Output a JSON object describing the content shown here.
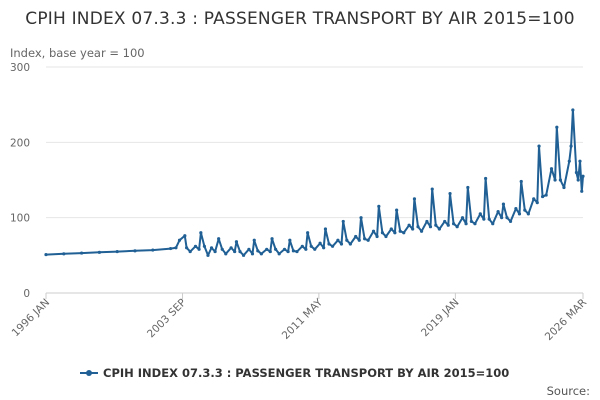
{
  "chart_data": {
    "type": "line",
    "title": "CPIH INDEX 07.3.3 : PASSENGER TRANSPORT BY AIR 2015=100",
    "ylabel": "Index, base year = 100",
    "xlabel": "",
    "ylim": [
      0,
      300
    ],
    "yticks": [
      0,
      100,
      200,
      300
    ],
    "x_range": [
      1996.0,
      2026.17
    ],
    "xtick_labels": [
      {
        "label": "1996 JAN",
        "t": 1996.0
      },
      {
        "label": "2003 SEP",
        "t": 2003.67
      },
      {
        "label": "2011 MAY",
        "t": 2011.33
      },
      {
        "label": "2019 JAN",
        "t": 2019.0
      },
      {
        "label": "2026 MAR",
        "t": 2026.17
      }
    ],
    "series": [
      {
        "name": "CPIH INDEX 07.3.3 : PASSENGER TRANSPORT BY AIR 2015=100",
        "color": "#206095",
        "points": [
          [
            1996.0,
            51
          ],
          [
            1997.0,
            52
          ],
          [
            1998.0,
            53
          ],
          [
            1999.0,
            54
          ],
          [
            2000.0,
            55
          ],
          [
            2001.0,
            56
          ],
          [
            2002.0,
            57
          ],
          [
            2003.0,
            59
          ],
          [
            2003.3,
            60
          ],
          [
            2003.5,
            70
          ],
          [
            2003.8,
            76
          ],
          [
            2003.9,
            60
          ],
          [
            2004.1,
            55
          ],
          [
            2004.4,
            62
          ],
          [
            2004.6,
            58
          ],
          [
            2004.7,
            80
          ],
          [
            2004.9,
            62
          ],
          [
            2005.1,
            50
          ],
          [
            2005.3,
            60
          ],
          [
            2005.5,
            55
          ],
          [
            2005.7,
            72
          ],
          [
            2005.9,
            58
          ],
          [
            2006.1,
            52
          ],
          [
            2006.4,
            60
          ],
          [
            2006.6,
            55
          ],
          [
            2006.7,
            68
          ],
          [
            2006.9,
            55
          ],
          [
            2007.1,
            50
          ],
          [
            2007.4,
            58
          ],
          [
            2007.6,
            52
          ],
          [
            2007.7,
            70
          ],
          [
            2007.9,
            56
          ],
          [
            2008.1,
            52
          ],
          [
            2008.4,
            58
          ],
          [
            2008.6,
            55
          ],
          [
            2008.7,
            72
          ],
          [
            2008.9,
            58
          ],
          [
            2009.1,
            52
          ],
          [
            2009.4,
            58
          ],
          [
            2009.6,
            55
          ],
          [
            2009.7,
            70
          ],
          [
            2009.9,
            56
          ],
          [
            2010.1,
            55
          ],
          [
            2010.4,
            62
          ],
          [
            2010.6,
            58
          ],
          [
            2010.7,
            80
          ],
          [
            2010.9,
            62
          ],
          [
            2011.1,
            58
          ],
          [
            2011.4,
            66
          ],
          [
            2011.6,
            60
          ],
          [
            2011.7,
            85
          ],
          [
            2011.9,
            65
          ],
          [
            2012.1,
            62
          ],
          [
            2012.4,
            70
          ],
          [
            2012.6,
            65
          ],
          [
            2012.7,
            95
          ],
          [
            2012.9,
            70
          ],
          [
            2013.1,
            65
          ],
          [
            2013.4,
            75
          ],
          [
            2013.6,
            70
          ],
          [
            2013.7,
            100
          ],
          [
            2013.9,
            72
          ],
          [
            2014.1,
            70
          ],
          [
            2014.4,
            82
          ],
          [
            2014.6,
            75
          ],
          [
            2014.7,
            115
          ],
          [
            2014.9,
            80
          ],
          [
            2015.1,
            75
          ],
          [
            2015.4,
            85
          ],
          [
            2015.6,
            80
          ],
          [
            2015.7,
            110
          ],
          [
            2015.9,
            82
          ],
          [
            2016.1,
            80
          ],
          [
            2016.4,
            90
          ],
          [
            2016.6,
            85
          ],
          [
            2016.7,
            125
          ],
          [
            2016.9,
            88
          ],
          [
            2017.1,
            82
          ],
          [
            2017.4,
            95
          ],
          [
            2017.6,
            88
          ],
          [
            2017.7,
            138
          ],
          [
            2017.9,
            90
          ],
          [
            2018.1,
            85
          ],
          [
            2018.4,
            95
          ],
          [
            2018.6,
            90
          ],
          [
            2018.7,
            132
          ],
          [
            2018.9,
            92
          ],
          [
            2019.1,
            88
          ],
          [
            2019.4,
            100
          ],
          [
            2019.6,
            92
          ],
          [
            2019.7,
            140
          ],
          [
            2019.9,
            95
          ],
          [
            2020.1,
            92
          ],
          [
            2020.4,
            105
          ],
          [
            2020.6,
            98
          ],
          [
            2020.7,
            152
          ],
          [
            2020.9,
            98
          ],
          [
            2021.1,
            92
          ],
          [
            2021.4,
            108
          ],
          [
            2021.6,
            100
          ],
          [
            2021.7,
            118
          ],
          [
            2021.9,
            100
          ],
          [
            2022.1,
            95
          ],
          [
            2022.4,
            112
          ],
          [
            2022.6,
            105
          ],
          [
            2022.7,
            148
          ],
          [
            2022.9,
            110
          ],
          [
            2023.1,
            105
          ],
          [
            2023.4,
            125
          ],
          [
            2023.6,
            120
          ],
          [
            2023.7,
            195
          ],
          [
            2023.9,
            128
          ],
          [
            2024.1,
            130
          ],
          [
            2024.4,
            165
          ],
          [
            2024.6,
            150
          ],
          [
            2024.7,
            220
          ],
          [
            2024.9,
            150
          ],
          [
            2025.1,
            140
          ],
          [
            2025.4,
            175
          ],
          [
            2025.5,
            195
          ],
          [
            2025.6,
            243
          ],
          [
            2025.8,
            160
          ],
          [
            2025.9,
            150
          ],
          [
            2026.0,
            175
          ],
          [
            2026.1,
            135
          ],
          [
            2026.17,
            155
          ]
        ]
      }
    ],
    "legend": {
      "position": "bottom",
      "label": "CPIH INDEX 07.3.3 : PASSENGER TRANSPORT BY AIR 2015=100"
    },
    "grid": true,
    "source_label": "Source:"
  }
}
